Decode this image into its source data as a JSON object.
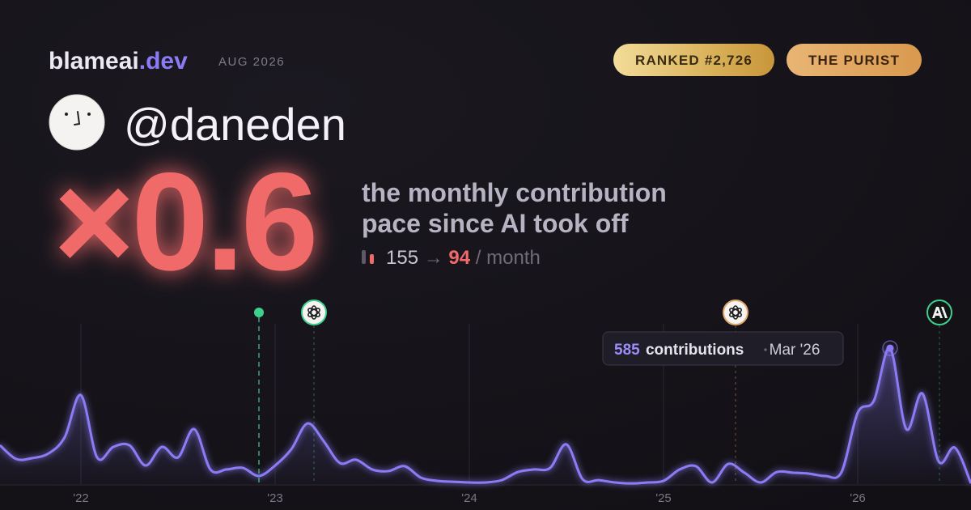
{
  "header": {
    "brand": "blameai",
    "brand_suffix": ".dev",
    "date": "AUG 2026",
    "badges": [
      "RANKED #2,726",
      "THE PURIST"
    ]
  },
  "profile": {
    "handle": "@daneden"
  },
  "headline": {
    "multiplier": "×0.6",
    "description": [
      "the monthly contribution",
      "pace since AI took off"
    ],
    "before": 155,
    "arrow": "→",
    "after": 94,
    "unit": "/ month"
  },
  "chart_data": {
    "type": "line",
    "categories": [
      null,
      null,
      null,
      null,
      null,
      "'22",
      null,
      null,
      null,
      null,
      null,
      null,
      null,
      null,
      null,
      null,
      null,
      "'23",
      null,
      null,
      null,
      null,
      null,
      null,
      null,
      null,
      null,
      null,
      null,
      "'24",
      null,
      null,
      null,
      null,
      null,
      null,
      null,
      null,
      null,
      null,
      null,
      "'25",
      null,
      null,
      null,
      null,
      null,
      null,
      null,
      null,
      null,
      null,
      null,
      "'26",
      null,
      null,
      null,
      null,
      null,
      null,
      null
    ],
    "values": [
      167,
      108,
      112,
      132,
      202,
      383,
      115,
      160,
      167,
      80,
      160,
      115,
      237,
      63,
      63,
      70,
      35,
      80,
      150,
      261,
      185,
      91,
      105,
      63,
      56,
      77,
      28,
      14,
      10,
      7,
      7,
      17,
      52,
      63,
      70,
      171,
      21,
      17,
      7,
      3,
      7,
      14,
      63,
      77,
      7,
      87,
      49,
      7,
      52,
      49,
      45,
      35,
      52,
      307,
      359,
      585,
      237,
      390,
      98,
      157,
      3
    ],
    "color": "#8b7cf6",
    "ylim": [
      0,
      690
    ],
    "tooltip": {
      "label": "contributions",
      "date": "Mar '26"
    }
  }
}
